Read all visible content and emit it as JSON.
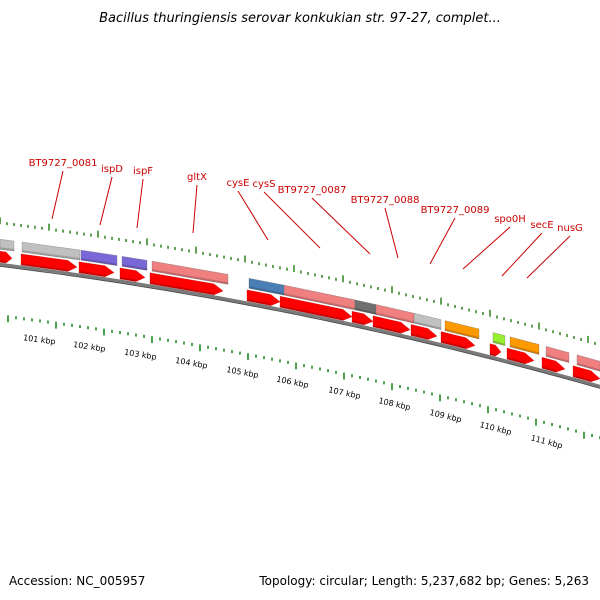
{
  "title": "Bacillus thuringiensis serovar konkukian str. 97-27, complet...",
  "footer": {
    "accession": "Accession: NC_005957",
    "summary": "Topology: circular; Length: 5,237,682 bp; Genes: 5,263"
  },
  "colors": {
    "label": "#cc0000",
    "arrow": "#ff0000",
    "outer_tick": "#3a8a2a",
    "inner_tick": "#228b22",
    "backbone": "#7a7a7a"
  },
  "gene_labels": [
    "BT9727_0081",
    "ispD",
    "ispF",
    "gltX",
    "cysE",
    "cysS",
    "BT9727_0087",
    "BT9727_0088",
    "BT9727_0089",
    "spo0H",
    "secE",
    "nusG"
  ],
  "kbp_labels": [
    "101 kbp",
    "102 kbp",
    "103 kbp",
    "104 kbp",
    "105 kbp",
    "106 kbp",
    "107 kbp",
    "108 kbp",
    "109 kbp",
    "110 kbp",
    "111 kbp"
  ],
  "feature_colors": [
    "#c0c0c0",
    "#c0c0c0",
    "#7b68d8",
    "#7b68d8",
    "#f08080",
    "#4a7fb5",
    "#f08080",
    "#707070",
    "#f08080",
    "#c0c0c0",
    "#ff9900",
    "#99ee33",
    "#ff9900",
    "#f08080",
    "#f08080"
  ]
}
